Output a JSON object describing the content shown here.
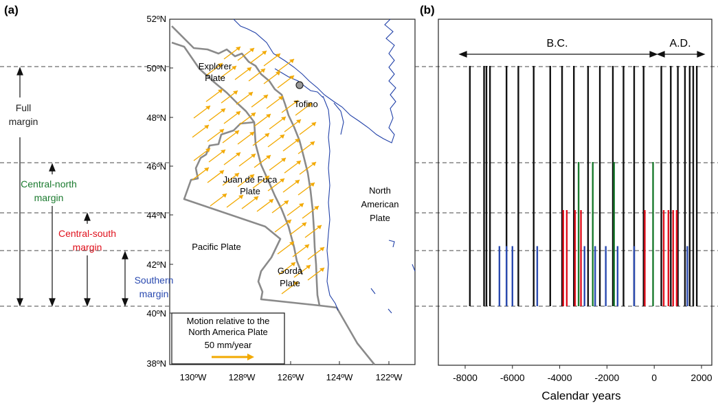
{
  "panel_a": {
    "label": "(a)",
    "lat_labels": [
      "52ºN",
      "50ºN",
      "48ºN",
      "46ºN",
      "44ºN",
      "42ºN",
      "40ºN",
      "38ºN"
    ],
    "lon_labels": [
      "130ºW",
      "128ºW",
      "126ºW",
      "124ºW",
      "122ºW"
    ],
    "plates": {
      "explorer": [
        "Explorer",
        "Plate"
      ],
      "juan_de_fuca": [
        "Juan de Fuca",
        "Plate"
      ],
      "north_american": [
        "North",
        "American",
        "Plate"
      ],
      "pacific": "Pacific Plate",
      "gorda": [
        "Gorda",
        "Plate"
      ]
    },
    "city": "Tofino",
    "legend": {
      "line1": "Motion relative to the",
      "line2": "North America Plate",
      "scale": "50 mm/year"
    },
    "margins": {
      "full": [
        "Full",
        "margin"
      ],
      "central_north": [
        "Central-north",
        "margin"
      ],
      "central_south": [
        "Central-south",
        "margin"
      ],
      "southern": [
        "Southern",
        "margin"
      ]
    },
    "colors": {
      "arrow": "#f2a900",
      "coast": "#2040a8",
      "boundary": "#888888",
      "central_north": "#1a7a2e",
      "central_south": "#e0101c",
      "southern": "#2a4ab0"
    }
  },
  "panel_b": {
    "label": "(b)"
  },
  "chart_data": {
    "type": "bar",
    "description_free": true,
    "era_labels": [
      "B.C.",
      "A.D."
    ],
    "xlabel": "Calendar years",
    "xlim": [
      -8000,
      2000
    ],
    "xticks": [
      -8000,
      -6000,
      -4000,
      -2000,
      0,
      2000
    ],
    "segment_levels_lat": {
      "full": [
        40.0,
        50.0
      ],
      "central_north": [
        40.0,
        46.0
      ],
      "central_south": [
        40.0,
        44.0
      ],
      "southern": [
        40.0,
        42.5
      ]
    },
    "series": [
      {
        "segment": "full",
        "color": "#111111",
        "values": [
          -7800,
          -7200,
          -7100,
          -6950,
          -6250,
          -5750,
          -5100,
          -4400,
          -3900,
          -3400,
          -2800,
          -2300,
          -1750,
          -1300,
          -850,
          -450,
          300,
          700,
          1000,
          1300,
          1500,
          1650,
          1800
        ]
      },
      {
        "segment": "central_north",
        "color": "#1a7a2e",
        "values": [
          -3200,
          -2600,
          -1700,
          -50
        ]
      },
      {
        "segment": "central_south",
        "color": "#e0101c",
        "values": [
          -3850,
          -3700,
          -3350,
          -3100,
          -400,
          400,
          600,
          800,
          950
        ]
      },
      {
        "segment": "southern",
        "color": "#2a4ab0",
        "values": [
          -6550,
          -6250,
          -6000,
          -4950,
          -2950,
          -2500,
          -2050,
          -1550,
          -850,
          1400
        ]
      }
    ]
  }
}
